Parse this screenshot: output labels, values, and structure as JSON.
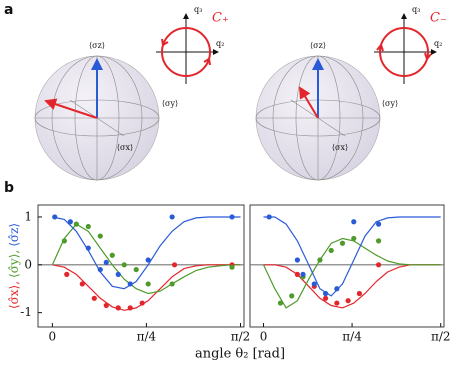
{
  "panel_labels": [
    "a",
    "b"
  ],
  "bloch_spheres": [
    {
      "axis_labels": [
        "⟨σz⟩",
        "⟨σy⟩",
        "⟨σx⟩"
      ],
      "inset": {
        "axis_labels": [
          "q₃",
          "q₂"
        ],
        "curve": "C₊"
      }
    },
    {
      "axis_labels": [
        "⟨σz⟩",
        "⟨σy⟩",
        "⟨σx⟩"
      ],
      "inset": {
        "axis_labels": [
          "q₃",
          "q₂"
        ],
        "curve": "C₋"
      }
    }
  ],
  "shared_axes": {
    "x_label": "angle θ₂ [rad]",
    "y_label": [
      "⟨σ̂x⟩,",
      "⟨σ̂y⟩,",
      "⟨σ̂z⟩"
    ]
  },
  "chart_data": [
    {
      "type": "line",
      "xlim": [
        -0.12,
        1.6
      ],
      "ylim": [
        -1.3,
        1.25
      ],
      "xticks": [
        0,
        {
          "value": 0.785,
          "label": "π/4"
        },
        {
          "value": 1.571,
          "label": "π/2"
        }
      ],
      "yticks": [
        -1,
        0,
        1
      ],
      "zero_line": true,
      "series": [
        {
          "color": "#e3262b",
          "x": [
            0,
            0.1,
            0.2,
            0.3,
            0.4,
            0.5,
            0.6,
            0.7,
            0.8,
            0.9,
            1.0,
            1.1,
            1.2,
            1.3,
            1.4,
            1.5,
            1.571
          ],
          "values": [
            0,
            -0.05,
            -0.2,
            -0.45,
            -0.7,
            -0.88,
            -0.95,
            -0.9,
            -0.75,
            -0.5,
            -0.25,
            -0.08,
            -0.02,
            0,
            0,
            0,
            0
          ]
        },
        {
          "color": "#4e9a2a",
          "x": [
            0,
            0.1,
            0.2,
            0.3,
            0.4,
            0.5,
            0.6,
            0.7,
            0.8,
            0.9,
            1.0,
            1.1,
            1.2,
            1.3,
            1.4,
            1.5,
            1.571
          ],
          "values": [
            0,
            0.55,
            0.85,
            0.7,
            0.35,
            0,
            -0.3,
            -0.5,
            -0.6,
            -0.55,
            -0.4,
            -0.25,
            -0.12,
            -0.05,
            -0.02,
            0,
            0
          ]
        },
        {
          "color": "#2a5bd7",
          "x": [
            0,
            0.1,
            0.2,
            0.3,
            0.4,
            0.5,
            0.6,
            0.7,
            0.8,
            0.9,
            1.0,
            1.1,
            1.2,
            1.3,
            1.4,
            1.5,
            1.571
          ],
          "values": [
            1,
            0.95,
            0.7,
            0.3,
            -0.15,
            -0.45,
            -0.5,
            -0.35,
            0,
            0.4,
            0.7,
            0.9,
            0.98,
            1,
            1,
            1,
            1
          ]
        }
      ],
      "points": [
        {
          "color": "#e3262b",
          "x": [
            0.12,
            0.25,
            0.35,
            0.45,
            0.55,
            0.65,
            0.75,
            1.02,
            1.5
          ],
          "values": [
            -0.2,
            -0.4,
            -0.7,
            -0.85,
            -0.9,
            -0.9,
            -0.8,
            0,
            0
          ]
        },
        {
          "color": "#4e9a2a",
          "x": [
            0.1,
            0.2,
            0.3,
            0.4,
            0.5,
            0.6,
            0.7,
            0.8,
            1.0,
            1.5
          ],
          "values": [
            0.5,
            0.85,
            0.8,
            0.6,
            0.2,
            0,
            -0.1,
            -0.4,
            -0.4,
            -0.05
          ]
        },
        {
          "color": "#2a5bd7",
          "x": [
            0.02,
            0.15,
            0.3,
            0.4,
            0.45,
            0.55,
            0.65,
            0.8,
            1.0,
            1.5
          ],
          "values": [
            1,
            0.9,
            0.35,
            -0.1,
            0.05,
            -0.2,
            -0.4,
            0.1,
            1,
            1
          ]
        }
      ]
    },
    {
      "type": "line",
      "xlim": [
        -0.12,
        1.6
      ],
      "ylim": [
        -1.3,
        1.25
      ],
      "xticks": [
        0,
        {
          "value": 0.785,
          "label": "π/4"
        },
        {
          "value": 1.571,
          "label": "π/2"
        }
      ],
      "zero_line": true,
      "series": [
        {
          "color": "#e3262b",
          "x": [
            0,
            0.1,
            0.2,
            0.3,
            0.4,
            0.5,
            0.6,
            0.7,
            0.8,
            0.9,
            1.0,
            1.1,
            1.2,
            1.3,
            1.4,
            1.5,
            1.571
          ],
          "values": [
            0,
            0,
            -0.05,
            -0.2,
            -0.45,
            -0.7,
            -0.85,
            -0.9,
            -0.8,
            -0.6,
            -0.35,
            -0.15,
            -0.05,
            0,
            0,
            0,
            0
          ]
        },
        {
          "color": "#4e9a2a",
          "x": [
            0,
            0.1,
            0.2,
            0.3,
            0.4,
            0.5,
            0.6,
            0.7,
            0.8,
            0.9,
            1.0,
            1.1,
            1.2,
            1.3,
            1.4,
            1.5,
            1.571
          ],
          "values": [
            0,
            -0.5,
            -0.9,
            -0.75,
            -0.3,
            0.1,
            0.45,
            0.55,
            0.5,
            0.35,
            0.2,
            0.08,
            0.02,
            0,
            0,
            0,
            0
          ]
        },
        {
          "color": "#2a5bd7",
          "x": [
            0,
            0.1,
            0.2,
            0.3,
            0.4,
            0.5,
            0.6,
            0.7,
            0.8,
            0.9,
            1.0,
            1.1,
            1.2,
            1.3,
            1.4,
            1.5,
            1.571
          ],
          "values": [
            1,
            1,
            0.85,
            0.5,
            0,
            -0.5,
            -0.65,
            -0.4,
            0.1,
            0.6,
            0.9,
            0.98,
            1,
            1,
            1,
            1,
            1
          ]
        }
      ],
      "points": [
        {
          "color": "#e3262b",
          "x": [
            0.3,
            0.45,
            0.55,
            0.65,
            0.75,
            0.85,
            1.02
          ],
          "values": [
            -0.2,
            -0.45,
            -0.7,
            -0.8,
            -0.75,
            -0.6,
            0
          ]
        },
        {
          "color": "#4e9a2a",
          "x": [
            0.15,
            0.25,
            0.35,
            0.5,
            0.6,
            0.7,
            0.8,
            1.02
          ],
          "values": [
            -0.8,
            -0.65,
            -0.25,
            0.1,
            0.3,
            0.45,
            0.55,
            0.5
          ]
        },
        {
          "color": "#2a5bd7",
          "x": [
            0.05,
            0.3,
            0.35,
            0.45,
            0.55,
            0.65,
            0.8,
            1.02
          ],
          "values": [
            1,
            0.1,
            -0.2,
            -0.4,
            -0.6,
            -0.5,
            0.9,
            0.85
          ]
        }
      ]
    }
  ]
}
